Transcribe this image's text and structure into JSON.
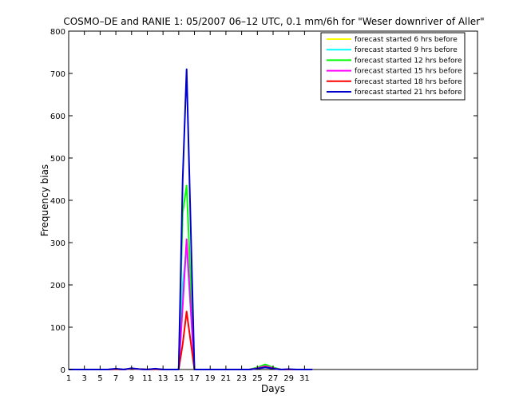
{
  "chart_data": {
    "type": "line",
    "title": "COSMO–DE and RANIE 1: 05/2007 06–12 UTC, 0.1 mm/6h for \"Weser downriver of Aller\"",
    "xlabel": "Days",
    "ylabel": "Frequency bias",
    "xlim": [
      1,
      53
    ],
    "ylim": [
      0,
      800
    ],
    "xticks": [
      1,
      3,
      5,
      7,
      9,
      11,
      13,
      15,
      17,
      19,
      21,
      23,
      25,
      27,
      29,
      31
    ],
    "yticks": [
      0,
      100,
      200,
      300,
      400,
      500,
      600,
      700,
      800
    ],
    "grid": false,
    "legend_position": "top-right",
    "series": [
      {
        "name": "forecast started 6 hrs before",
        "color": "#ffff00",
        "x": [
          1,
          2,
          3,
          4,
          5,
          6,
          7,
          8,
          9,
          10,
          11,
          12,
          13,
          14,
          15,
          15.5,
          16,
          17,
          18,
          19,
          20,
          21,
          22,
          23,
          24,
          25,
          26,
          27,
          28,
          29,
          30,
          31,
          32
        ],
        "values": [
          0,
          0,
          0,
          0,
          0,
          0,
          1,
          0,
          2,
          1,
          0,
          1,
          0,
          0,
          0,
          180,
          300,
          0,
          0,
          0,
          0,
          0,
          0,
          0,
          0,
          3,
          8,
          3,
          0,
          0,
          0,
          0,
          0
        ]
      },
      {
        "name": "forecast started 9 hrs before",
        "color": "#00ffff",
        "x": [
          1,
          2,
          3,
          4,
          5,
          6,
          7,
          8,
          9,
          10,
          11,
          12,
          13,
          14,
          15,
          15.5,
          16,
          17,
          18,
          19,
          20,
          21,
          22,
          23,
          24,
          25,
          26,
          27,
          28,
          29,
          30,
          31,
          32
        ],
        "values": [
          0,
          0,
          0,
          0,
          0,
          0,
          1,
          0,
          2,
          1,
          0,
          1,
          0,
          0,
          0,
          200,
          290,
          0,
          0,
          0,
          0,
          0,
          0,
          0,
          0,
          3,
          9,
          3,
          0,
          0,
          0,
          0,
          0
        ]
      },
      {
        "name": "forecast started 12 hrs before",
        "color": "#00ff00",
        "x": [
          1,
          2,
          3,
          4,
          5,
          6,
          7,
          8,
          9,
          10,
          11,
          12,
          13,
          14,
          15,
          15.5,
          16,
          17,
          18,
          19,
          20,
          21,
          22,
          23,
          24,
          25,
          26,
          27,
          28,
          29,
          30,
          31,
          32
        ],
        "values": [
          0,
          0,
          0,
          0,
          0,
          0,
          1,
          0,
          2,
          1,
          0,
          1,
          0,
          0,
          0,
          370,
          435,
          0,
          0,
          0,
          0,
          0,
          0,
          0,
          0,
          5,
          12,
          5,
          0,
          0,
          0,
          0,
          0
        ]
      },
      {
        "name": "forecast started 15 hrs before",
        "color": "#ff00ff",
        "x": [
          1,
          2,
          3,
          4,
          5,
          6,
          7,
          8,
          9,
          10,
          11,
          12,
          13,
          14,
          15,
          15.5,
          16,
          17,
          18,
          19,
          20,
          21,
          22,
          23,
          24,
          25,
          26,
          27,
          28,
          29,
          30,
          31,
          32
        ],
        "values": [
          0,
          0,
          0,
          0,
          0,
          0,
          1,
          0,
          2,
          1,
          0,
          1,
          0,
          0,
          0,
          150,
          308,
          0,
          0,
          0,
          0,
          0,
          0,
          0,
          0,
          3,
          8,
          3,
          0,
          0,
          0,
          0,
          0
        ]
      },
      {
        "name": "forecast started 18 hrs before",
        "color": "#ff0000",
        "x": [
          1,
          2,
          3,
          4,
          5,
          6,
          7,
          8,
          9,
          10,
          11,
          12,
          13,
          14,
          15,
          15.5,
          16,
          17,
          18,
          19,
          20,
          21,
          22,
          23,
          24,
          25,
          26,
          27,
          28,
          29,
          30,
          31,
          32
        ],
        "values": [
          0,
          0,
          0,
          0,
          0,
          0,
          1,
          0,
          2,
          1,
          0,
          1,
          0,
          0,
          0,
          60,
          137,
          0,
          0,
          0,
          0,
          0,
          0,
          0,
          0,
          2,
          6,
          2,
          0,
          0,
          0,
          0,
          0
        ]
      },
      {
        "name": "forecast started 21 hrs before",
        "color": "#0000cc",
        "x": [
          1,
          2,
          3,
          4,
          5,
          6,
          7,
          8,
          9,
          10,
          11,
          12,
          13,
          14,
          15,
          15.5,
          16,
          17,
          18,
          19,
          20,
          21,
          22,
          23,
          24,
          25,
          26,
          27,
          28,
          29,
          30,
          31,
          32
        ],
        "values": [
          0,
          0,
          0,
          0,
          0,
          0,
          2,
          0,
          3,
          1,
          0,
          2,
          0,
          0,
          0,
          450,
          710,
          0,
          0,
          0,
          0,
          0,
          0,
          0,
          0,
          2,
          5,
          2,
          0,
          1,
          0,
          0,
          0
        ]
      }
    ]
  }
}
